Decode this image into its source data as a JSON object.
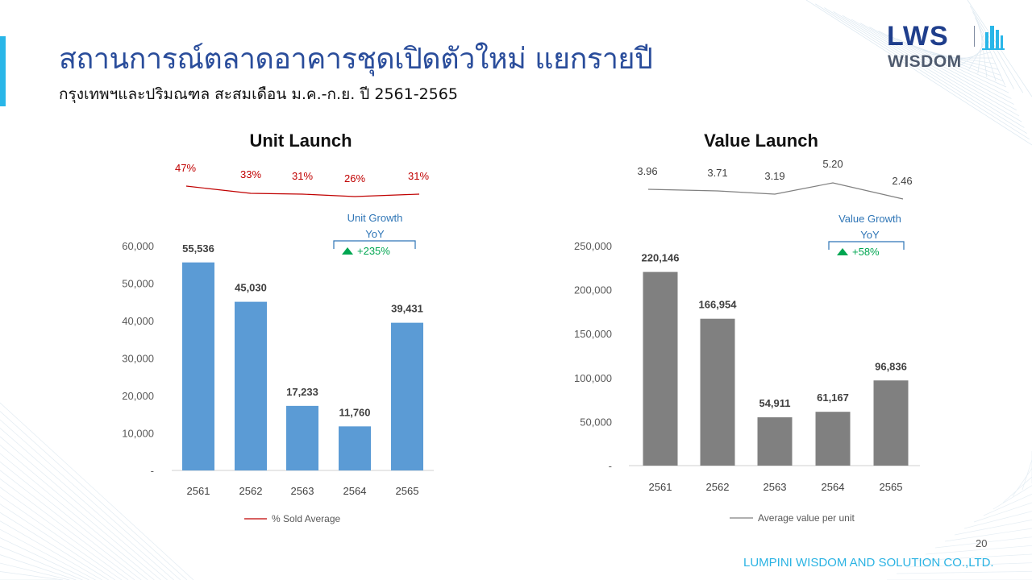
{
  "slide": {
    "title": "สถานการณ์ตลาดอาคารชุดเปิดตัวใหม่ แยกรายปี",
    "subtitle": "กรุงเทพฯและปริมณฑล สะสมเดือน ม.ค.-ก.ย. ปี 2561-2565",
    "page_number": "20",
    "footer": "LUMPINI WISDOM AND SOLUTION CO.,LTD."
  },
  "logo": {
    "top": "LWS",
    "bottom": "WISDOM"
  },
  "colors": {
    "title": "#2a4d9b",
    "accent": "#29b6e8",
    "bar_blue": "#5b9bd5",
    "bar_gray": "#808080",
    "line_red": "#c00000",
    "line_gray": "#808080",
    "growth_blue": "#2e75b6",
    "growth_green": "#00a651"
  },
  "chart_data": [
    {
      "type": "bar",
      "title": "Unit Launch",
      "categories": [
        "2561",
        "2562",
        "2563",
        "2564",
        "2565"
      ],
      "values": [
        55536,
        45030,
        17233,
        11760,
        39431
      ],
      "value_labels": [
        "55,536",
        "45,030",
        "17,233",
        "11,760",
        "39,431"
      ],
      "ylim": [
        0,
        60000
      ],
      "yticks": [
        0,
        10000,
        20000,
        30000,
        40000,
        50000,
        60000
      ],
      "ytick_labels": [
        "-",
        "10,000",
        "20,000",
        "30,000",
        "40,000",
        "50,000",
        "60,000"
      ],
      "bar_color": "#5b9bd5",
      "line": {
        "name": "% Sold Average",
        "values": [
          47,
          33,
          31,
          26,
          31
        ],
        "labels": [
          "47%",
          "33%",
          "31%",
          "26%",
          "31%"
        ],
        "color": "#c00000"
      },
      "growth": {
        "title": "Unit Growth YoY",
        "value": "+235%",
        "direction": "up"
      },
      "legend_position": "bottom"
    },
    {
      "type": "bar",
      "title": "Value Launch",
      "categories": [
        "2561",
        "2562",
        "2563",
        "2564",
        "2565"
      ],
      "values": [
        220146,
        166954,
        54911,
        61167,
        96836
      ],
      "value_labels": [
        "220,146",
        "166,954",
        "54,911",
        "61,167",
        "96,836"
      ],
      "ylim": [
        0,
        250000
      ],
      "yticks": [
        0,
        50000,
        100000,
        150000,
        200000,
        250000
      ],
      "ytick_labels": [
        "-",
        "50,000",
        "100,000",
        "150,000",
        "200,000",
        "250,000"
      ],
      "bar_color": "#808080",
      "line": {
        "name": "Average value per unit",
        "values": [
          3.96,
          3.71,
          3.19,
          5.2,
          2.46
        ],
        "labels": [
          "3.96",
          "3.71",
          "3.19",
          "5.20",
          "2.46"
        ],
        "color": "#808080"
      },
      "growth": {
        "title": "Value Growth YoY",
        "value": "+58%",
        "direction": "up"
      },
      "legend_position": "bottom"
    }
  ]
}
